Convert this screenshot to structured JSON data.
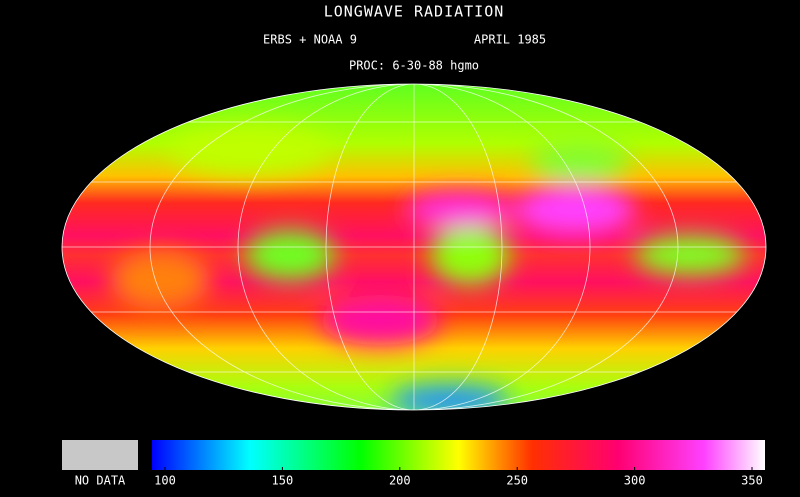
{
  "header": {
    "title": "LONGWAVE RADIATION",
    "instruments": "ERBS + NOAA 9",
    "date": "APRIL 1985",
    "processed": "PROC: 6-30-88 hgmo"
  },
  "legend": {
    "no_data": "NO DATA"
  },
  "colorbar": {
    "lim": [
      100,
      350
    ],
    "ticks": [
      100,
      150,
      200,
      250,
      300,
      350
    ]
  }
}
